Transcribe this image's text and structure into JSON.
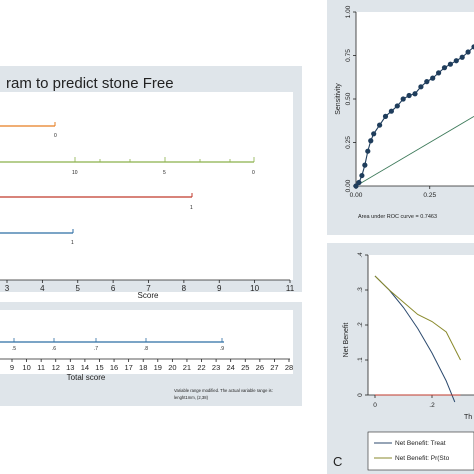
{
  "nomogram": {
    "title": "ram to predict stone Free",
    "score_label": "Score",
    "score_ticks": [
      "3",
      "4",
      "5",
      "6",
      "7",
      "8",
      "9",
      "10",
      "11"
    ],
    "total_label": "Total score",
    "total_ticks": [
      "9",
      "10",
      "11",
      "12",
      "13",
      "14",
      "15",
      "16",
      "17",
      "18",
      "19",
      "20",
      "21",
      "22",
      "23",
      "24",
      "25",
      "26",
      "27",
      "28"
    ],
    "prob_ticks": [
      ".5",
      ".6",
      ".7",
      ".8",
      ".9"
    ],
    "row1_tick": "0",
    "row2_ticks": [
      "10",
      "5",
      "0"
    ],
    "row3_tick": "1",
    "row4_tick": "1",
    "note_line1": "Variable range modified. The actual variable range is:",
    "note_line2": "lenght1mm, (2,38)",
    "colors": {
      "row1": "#e67e22",
      "row2": "#8bb04a",
      "row3": "#c0392b",
      "row4": "#2c6da4",
      "prob": "#2c6da4",
      "panel": "#dfe5ea"
    }
  },
  "roc": {
    "ylabel": "Sensitivity",
    "y_ticks": [
      "0.00",
      "0.25",
      "0.50",
      "0.75",
      "1.00"
    ],
    "x_ticks": [
      "0.00",
      "0.25"
    ],
    "auc_text": "Area under ROC curve = 0.7463"
  },
  "dca": {
    "ylabel": "Net Benefit",
    "y_ticks": [
      "0",
      ".1",
      ".2",
      ".3",
      ".4"
    ],
    "x_ticks": [
      "0",
      ".2"
    ],
    "x_cut": "Th",
    "legend": [
      "Net Benefit: Treat",
      "Net Benefit: Pr(Sto"
    ],
    "panel_letter": "C"
  },
  "chart_data": [
    {
      "type": "line",
      "title": "ram to predict stone Free",
      "xlabel": "Score",
      "score_axis": [
        3,
        11
      ],
      "total_axis": [
        9,
        28
      ],
      "probability_ticks": [
        0.5,
        0.6,
        0.7,
        0.8,
        0.9
      ],
      "probability_span_total_score": [
        9,
        23.5
      ],
      "rows": [
        {
          "tick_labels": [
            "0"
          ],
          "span_score": [
            3,
            4.4
          ]
        },
        {
          "tick_labels": [
            "10",
            "5",
            "0"
          ],
          "span_score": [
            3,
            10
          ]
        },
        {
          "tick_labels": [
            "1"
          ],
          "span_score": [
            3,
            8.2
          ]
        },
        {
          "tick_labels": [
            "1"
          ],
          "span_score": [
            3,
            5
          ]
        }
      ]
    },
    {
      "type": "line",
      "ylabel": "Sensitivity",
      "xlim": [
        0,
        0.4
      ],
      "ylim": [
        0,
        1
      ],
      "auc": 0.7463,
      "series": [
        {
          "x": [
            0,
            0.01,
            0.02,
            0.03,
            0.04,
            0.05,
            0.06,
            0.08,
            0.1,
            0.12,
            0.14,
            0.16,
            0.18,
            0.2,
            0.22,
            0.24,
            0.26,
            0.28,
            0.3,
            0.32,
            0.34,
            0.36,
            0.38,
            0.4
          ],
          "y": [
            0,
            0.02,
            0.06,
            0.12,
            0.2,
            0.26,
            0.3,
            0.35,
            0.4,
            0.43,
            0.46,
            0.5,
            0.52,
            0.53,
            0.57,
            0.6,
            0.62,
            0.65,
            0.68,
            0.7,
            0.72,
            0.74,
            0.77,
            0.8
          ]
        },
        {
          "x": [
            0,
            0.4
          ],
          "y": [
            0,
            0.4
          ]
        }
      ]
    },
    {
      "type": "line",
      "ylabel": "Net Benefit",
      "xlim": [
        0,
        0.3
      ],
      "ylim": [
        0,
        0.4
      ],
      "series": [
        {
          "name": "Net Benefit: Treat",
          "x": [
            0,
            0.05,
            0.1,
            0.15,
            0.2,
            0.25,
            0.28
          ],
          "y": [
            0.34,
            0.3,
            0.25,
            0.19,
            0.12,
            0.04,
            -0.02
          ]
        },
        {
          "name": "Net Benefit: Pr(Sto",
          "x": [
            0,
            0.05,
            0.1,
            0.15,
            0.2,
            0.25,
            0.3
          ],
          "y": [
            0.34,
            0.3,
            0.265,
            0.23,
            0.21,
            0.18,
            0.1
          ]
        },
        {
          "name": "",
          "x": [
            0,
            0.3
          ],
          "y": [
            0,
            0
          ]
        }
      ]
    }
  ]
}
